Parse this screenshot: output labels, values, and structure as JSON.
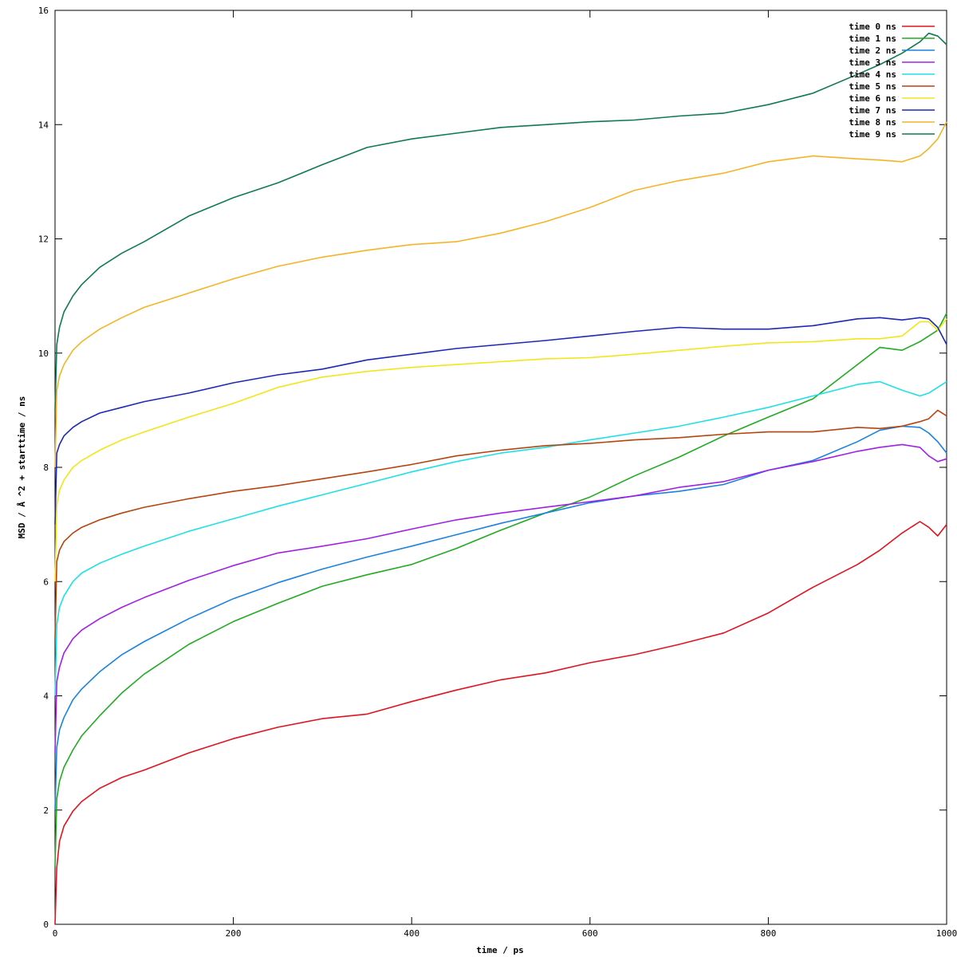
{
  "chart_data": {
    "type": "line",
    "title": "",
    "xlabel": "time / ps",
    "ylabel": "MSD / Å ^2 + starttime / ns",
    "xlim": [
      0,
      1000
    ],
    "ylim": [
      0,
      16
    ],
    "xticks": [
      0,
      200,
      400,
      600,
      800,
      1000
    ],
    "yticks": [
      0,
      2,
      4,
      6,
      8,
      10,
      12,
      14,
      16
    ],
    "xtick_labels": [
      "0",
      "200",
      "400",
      "600",
      "800",
      "1000"
    ],
    "ytick_labels": [
      "0",
      "2",
      "4",
      "6",
      "8",
      "10",
      "12",
      "14",
      "16"
    ],
    "grid": false,
    "legend_position": "top-right",
    "series": [
      {
        "name": "time 0 ns",
        "color": "#e0141e",
        "x": [
          0,
          2,
          5,
          10,
          20,
          30,
          50,
          75,
          100,
          150,
          200,
          250,
          300,
          350,
          400,
          450,
          500,
          550,
          600,
          650,
          700,
          750,
          800,
          850,
          900,
          925,
          950,
          970,
          980,
          990,
          1000
        ],
        "y": [
          0,
          1.0,
          1.45,
          1.72,
          1.98,
          2.15,
          2.38,
          2.57,
          2.7,
          3.0,
          3.25,
          3.45,
          3.6,
          3.68,
          3.9,
          4.1,
          4.28,
          4.4,
          4.58,
          4.72,
          4.9,
          5.1,
          5.45,
          5.9,
          6.3,
          6.55,
          6.85,
          7.05,
          6.95,
          6.8,
          7.0
        ]
      },
      {
        "name": "time 1 ns",
        "color": "#22aa22",
        "x": [
          0,
          2,
          5,
          10,
          20,
          30,
          50,
          75,
          100,
          150,
          200,
          250,
          300,
          350,
          400,
          450,
          500,
          550,
          600,
          650,
          700,
          750,
          800,
          850,
          900,
          925,
          950,
          970,
          980,
          990,
          1000
        ],
        "y": [
          1,
          2.2,
          2.5,
          2.75,
          3.05,
          3.3,
          3.65,
          4.05,
          4.38,
          4.9,
          5.3,
          5.62,
          5.92,
          6.12,
          6.3,
          6.58,
          6.9,
          7.2,
          7.48,
          7.85,
          8.18,
          8.55,
          8.88,
          9.2,
          9.8,
          10.1,
          10.05,
          10.2,
          10.3,
          10.4,
          10.7
        ]
      },
      {
        "name": "time 2 ns",
        "color": "#1a82e0",
        "x": [
          0,
          2,
          5,
          10,
          20,
          30,
          50,
          75,
          100,
          150,
          200,
          250,
          300,
          350,
          400,
          450,
          500,
          550,
          600,
          650,
          700,
          750,
          800,
          850,
          900,
          925,
          950,
          970,
          980,
          990,
          1000
        ],
        "y": [
          2,
          3.1,
          3.4,
          3.62,
          3.93,
          4.12,
          4.42,
          4.72,
          4.95,
          5.35,
          5.7,
          5.98,
          6.22,
          6.43,
          6.62,
          6.82,
          7.02,
          7.2,
          7.38,
          7.5,
          7.58,
          7.7,
          7.95,
          8.12,
          8.45,
          8.65,
          8.72,
          8.7,
          8.6,
          8.45,
          8.25
        ]
      },
      {
        "name": "time 3 ns",
        "color": "#a020e8",
        "x": [
          0,
          2,
          5,
          10,
          20,
          30,
          50,
          75,
          100,
          150,
          200,
          250,
          300,
          350,
          400,
          450,
          500,
          550,
          600,
          650,
          700,
          750,
          800,
          850,
          900,
          925,
          950,
          970,
          980,
          990,
          1000
        ],
        "y": [
          3,
          4.25,
          4.5,
          4.75,
          5.0,
          5.15,
          5.35,
          5.55,
          5.72,
          6.02,
          6.28,
          6.5,
          6.62,
          6.75,
          6.92,
          7.08,
          7.2,
          7.3,
          7.4,
          7.5,
          7.65,
          7.75,
          7.95,
          8.1,
          8.28,
          8.35,
          8.4,
          8.35,
          8.2,
          8.1,
          8.15
        ]
      },
      {
        "name": "time 4 ns",
        "color": "#1ee0e6",
        "x": [
          0,
          2,
          5,
          10,
          20,
          30,
          50,
          75,
          100,
          150,
          200,
          250,
          300,
          350,
          400,
          450,
          500,
          550,
          600,
          650,
          700,
          750,
          800,
          850,
          900,
          925,
          950,
          970,
          980,
          990,
          1000
        ],
        "y": [
          4,
          5.25,
          5.55,
          5.75,
          6.0,
          6.15,
          6.32,
          6.48,
          6.62,
          6.88,
          7.1,
          7.32,
          7.52,
          7.72,
          7.92,
          8.1,
          8.25,
          8.35,
          8.48,
          8.6,
          8.72,
          8.88,
          9.05,
          9.25,
          9.45,
          9.5,
          9.35,
          9.25,
          9.3,
          9.4,
          9.5
        ]
      },
      {
        "name": "time 5 ns",
        "color": "#b5450f",
        "x": [
          0,
          2,
          5,
          10,
          20,
          30,
          50,
          75,
          100,
          150,
          200,
          250,
          300,
          350,
          400,
          450,
          500,
          550,
          600,
          650,
          700,
          750,
          800,
          850,
          900,
          925,
          950,
          970,
          980,
          990,
          1000
        ],
        "y": [
          5,
          6.35,
          6.55,
          6.7,
          6.85,
          6.95,
          7.08,
          7.2,
          7.3,
          7.45,
          7.58,
          7.68,
          7.8,
          7.92,
          8.05,
          8.2,
          8.3,
          8.38,
          8.42,
          8.48,
          8.52,
          8.58,
          8.62,
          8.62,
          8.7,
          8.68,
          8.72,
          8.8,
          8.85,
          9.0,
          8.9
        ]
      },
      {
        "name": "time 6 ns",
        "color": "#f2e61a",
        "x": [
          0,
          2,
          5,
          10,
          20,
          30,
          50,
          75,
          100,
          150,
          200,
          250,
          300,
          350,
          400,
          450,
          500,
          550,
          600,
          650,
          700,
          750,
          800,
          850,
          900,
          925,
          950,
          970,
          980,
          990,
          1000
        ],
        "y": [
          6,
          7.35,
          7.6,
          7.78,
          8.0,
          8.12,
          8.3,
          8.48,
          8.62,
          8.88,
          9.12,
          9.4,
          9.58,
          9.68,
          9.75,
          9.8,
          9.85,
          9.9,
          9.92,
          9.98,
          10.05,
          10.12,
          10.18,
          10.2,
          10.25,
          10.25,
          10.3,
          10.55,
          10.55,
          10.4,
          10.6
        ]
      },
      {
        "name": "time 7 ns",
        "color": "#1e28b4",
        "x": [
          0,
          2,
          5,
          10,
          20,
          30,
          50,
          75,
          100,
          150,
          200,
          250,
          300,
          350,
          400,
          450,
          500,
          550,
          600,
          650,
          700,
          750,
          800,
          850,
          900,
          925,
          950,
          970,
          980,
          990,
          1000
        ],
        "y": [
          7,
          8.25,
          8.4,
          8.55,
          8.7,
          8.8,
          8.95,
          9.05,
          9.15,
          9.3,
          9.48,
          9.62,
          9.72,
          9.88,
          9.98,
          10.08,
          10.15,
          10.22,
          10.3,
          10.38,
          10.45,
          10.42,
          10.42,
          10.48,
          10.6,
          10.62,
          10.58,
          10.62,
          10.6,
          10.45,
          10.15
        ]
      },
      {
        "name": "time 8 ns",
        "color": "#f5b428",
        "x": [
          0,
          2,
          5,
          10,
          20,
          30,
          50,
          75,
          100,
          150,
          200,
          250,
          300,
          350,
          400,
          450,
          500,
          550,
          600,
          650,
          700,
          750,
          800,
          850,
          900,
          925,
          950,
          970,
          980,
          990,
          1000
        ],
        "y": [
          8,
          9.35,
          9.6,
          9.8,
          10.05,
          10.2,
          10.42,
          10.62,
          10.8,
          11.05,
          11.3,
          11.52,
          11.68,
          11.8,
          11.9,
          11.95,
          12.1,
          12.3,
          12.55,
          12.85,
          13.02,
          13.15,
          13.35,
          13.45,
          13.4,
          13.38,
          13.35,
          13.45,
          13.58,
          13.75,
          14.05
        ]
      },
      {
        "name": "time 9 ns",
        "color": "#0f7a50",
        "x": [
          0,
          2,
          5,
          10,
          20,
          30,
          50,
          75,
          100,
          150,
          200,
          250,
          300,
          350,
          400,
          450,
          500,
          550,
          600,
          650,
          700,
          750,
          800,
          850,
          900,
          925,
          950,
          970,
          980,
          990,
          1000
        ],
        "y": [
          9,
          10.15,
          10.45,
          10.72,
          11.0,
          11.2,
          11.5,
          11.75,
          11.95,
          12.4,
          12.72,
          12.98,
          13.3,
          13.6,
          13.75,
          13.85,
          13.95,
          14.0,
          14.05,
          14.08,
          14.15,
          14.2,
          14.35,
          14.55,
          14.88,
          15.05,
          15.25,
          15.45,
          15.6,
          15.55,
          15.4
        ]
      }
    ]
  }
}
